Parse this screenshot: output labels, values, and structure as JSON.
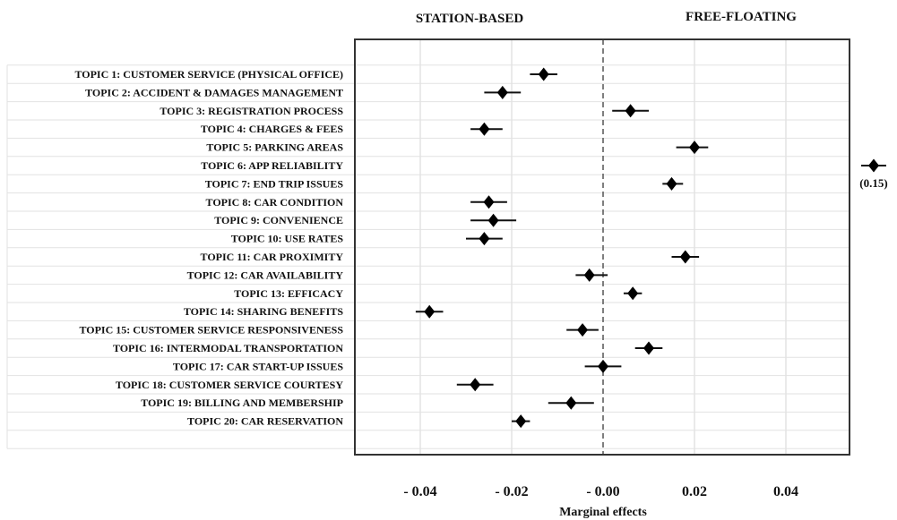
{
  "chart_data": {
    "type": "scatter",
    "title": "",
    "xlabel": "Marginal effects",
    "ylabel": "",
    "xlim": [
      -0.055,
      0.055
    ],
    "x_ticks": [
      -0.04,
      -0.02,
      0.0,
      0.02,
      0.04
    ],
    "x_tick_labels": [
      "- 0.04",
      "- 0.02",
      "- 0.00",
      "0.02",
      "0.04"
    ],
    "grid": true,
    "reference_line": 0,
    "header_left": "STATION-BASED",
    "header_right": "FREE-FLOATING",
    "categories": [
      "TOPIC 1: CUSTOMER  SERVICE (PHYSICAL OFFICE)",
      "TOPIC 2: ACCIDENT & DAMAGES MANAGEMENT",
      "TOPIC 3: REGISTRATION PROCESS",
      "TOPIC 4: CHARGES & FEES",
      "TOPIC 5: PARKING AREAS",
      "TOPIC 6: APP RELIABILITY",
      "TOPIC 7: END TRIP ISSUES",
      "TOPIC 8: CAR CONDITION",
      "TOPIC 9: CONVENIENCE",
      "TOPIC 10: USE RATES",
      "TOPIC 11: CAR PROXIMITY",
      "TOPIC 12: CAR AVAILABILITY",
      "TOPIC 13: EFFICACY",
      "TOPIC 14: SHARING BENEFITS",
      "TOPIC 15: CUSTOMER SERVICE RESPONSIVENESS",
      "TOPIC 16: INTERMODAL TRANSPORTATION",
      "TOPIC 17: CAR START-UP ISSUES",
      "TOPIC 18: CUSTOMER SERVICE COURTESY",
      "TOPIC 19: BILLING AND MEMBERSHIP",
      "TOPIC 20: CAR RESERVATION"
    ],
    "estimates": [
      -0.013,
      -0.022,
      0.006,
      -0.026,
      0.02,
      0.15,
      0.015,
      -0.025,
      -0.024,
      -0.026,
      0.018,
      -0.003,
      0.0065,
      -0.038,
      -0.0045,
      0.01,
      0.0,
      -0.028,
      -0.007,
      -0.018
    ],
    "ci_low": [
      -0.016,
      -0.026,
      0.002,
      -0.029,
      0.016,
      null,
      0.013,
      -0.029,
      -0.029,
      -0.03,
      0.015,
      -0.006,
      0.0045,
      -0.041,
      -0.008,
      0.007,
      -0.004,
      -0.032,
      -0.012,
      -0.02
    ],
    "ci_high": [
      -0.01,
      -0.018,
      0.01,
      -0.022,
      0.023,
      null,
      0.0175,
      -0.021,
      -0.019,
      -0.022,
      0.021,
      0.001,
      0.0085,
      -0.035,
      -0.001,
      0.013,
      0.004,
      -0.024,
      -0.002,
      -0.016
    ],
    "outlier": {
      "index": 5,
      "label": "(0.15)"
    }
  }
}
